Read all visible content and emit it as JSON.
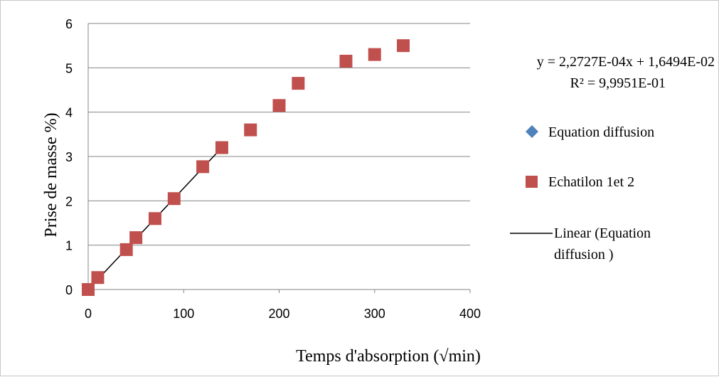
{
  "chart_data": {
    "type": "scatter",
    "xlabel": "Temps d'absorption  (√min)",
    "ylabel": "Prise de masse %)",
    "xlim": [
      0,
      400
    ],
    "ylim": [
      0,
      6
    ],
    "xticks": [
      "0",
      "100",
      "200",
      "300",
      "400"
    ],
    "yticks": [
      "0",
      "1",
      "2",
      "3",
      "4",
      "5",
      "6"
    ],
    "grid": "horizontal",
    "legend_position": "right",
    "series": [
      {
        "name": "Equation diffusion",
        "marker": "diamond",
        "color": "#4f81bd",
        "x": [],
        "y": []
      },
      {
        "name": "Echatilon 1et 2",
        "marker": "square",
        "color": "#c0504d",
        "x": [
          0,
          10,
          40,
          50,
          70,
          90,
          120,
          140,
          170,
          200,
          220,
          270,
          300,
          330
        ],
        "y": [
          0,
          0.27,
          0.9,
          1.17,
          1.6,
          2.05,
          2.77,
          3.2,
          3.6,
          4.15,
          4.65,
          5.15,
          5.3,
          5.5
        ]
      }
    ],
    "trendline": {
      "name": "Linear (Equation diffusion )",
      "legend_lines": [
        "Linear (Equation",
        "diffusion )"
      ],
      "color": "#000000",
      "x": [
        0,
        140
      ],
      "y": [
        0,
        3.2
      ]
    },
    "annotation": {
      "equation": "y = 2,2727E-04x + 1,6494E-02",
      "r2": "R² = 9,9951E-01"
    }
  }
}
